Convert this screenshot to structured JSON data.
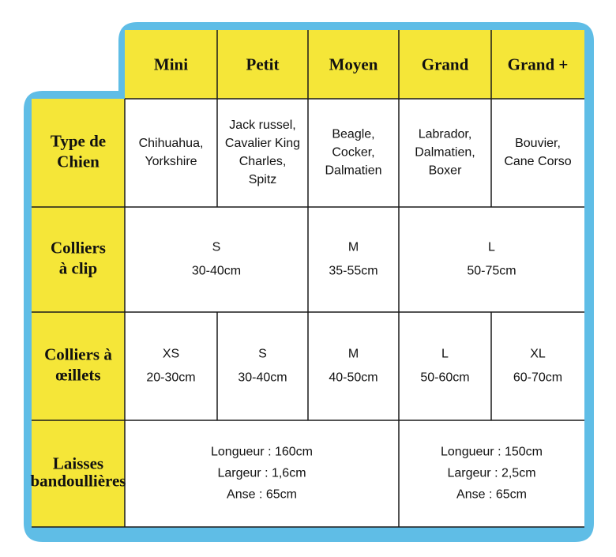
{
  "table": {
    "header": [
      "Mini",
      "Petit",
      "Moyen",
      "Grand",
      "Grand +"
    ],
    "rows": [
      {
        "label": [
          "Type de",
          "Chien"
        ],
        "cells": [
          [
            "Chihuahua,",
            "Yorkshire"
          ],
          [
            "Jack russel,",
            "Cavalier King",
            "Charles,",
            "Spitz"
          ],
          [
            "Beagle,",
            "Cocker,",
            "Dalmatien"
          ],
          [
            "Labrador,",
            "Dalmatien,",
            "Boxer"
          ],
          [
            "Bouvier,",
            "Cane Corso"
          ]
        ]
      },
      {
        "label": [
          "Colliers",
          "à clip"
        ],
        "cells": [
          [
            "S",
            "30-40cm"
          ],
          [
            "M",
            "35-55cm"
          ],
          [
            "L",
            "50-75cm"
          ]
        ]
      },
      {
        "label": [
          "Colliers à",
          "œillets"
        ],
        "cells": [
          [
            "XS",
            "20-30cm"
          ],
          [
            "S",
            "30-40cm"
          ],
          [
            "M",
            "40-50cm"
          ],
          [
            "L",
            "50-60cm"
          ],
          [
            "XL",
            "60-70cm"
          ]
        ]
      },
      {
        "label": [
          "Laisses",
          "bandoullières"
        ],
        "cells": [
          [
            "Longueur : 160cm",
            "Largeur : 1,6cm",
            "Anse : 65cm"
          ],
          [
            "Longueur : 150cm",
            "Largeur : 2,5cm",
            "Anse : 65cm"
          ]
        ]
      }
    ]
  }
}
